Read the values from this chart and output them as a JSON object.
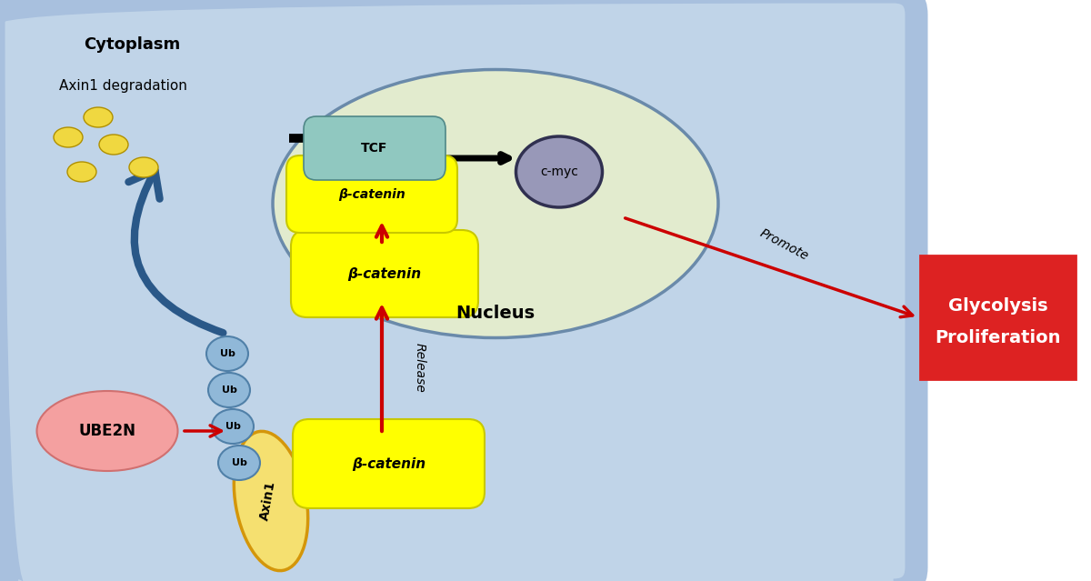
{
  "fig_width": 12.0,
  "fig_height": 6.39,
  "bg_color": "#ffffff",
  "cell_bg_outer": "#a8c0de",
  "cell_bg_inner": "#c0d4e8",
  "nucleus_bg": "#e2ebce",
  "nucleus_border": "#6a8aaa",
  "ube2n_color": "#f4a0a0",
  "ube2n_border": "#d07070",
  "ube2n_text": "UBE2N",
  "axin1_color": "#f5e070",
  "axin1_border": "#d4960a",
  "axin1_text": "Axin1",
  "ub_color": "#90b8d8",
  "ub_border": "#5080a8",
  "ub_text": "Ub",
  "beta_catenin_color": "#ffff00",
  "beta_catenin_border": "#c8c800",
  "beta_catenin_text": "β-catenin",
  "tcf_color": "#90c8c0",
  "tcf_border": "#508888",
  "tcf_text": "TCF",
  "cmyc_color": "#9898b8",
  "cmyc_border": "#303050",
  "cmyc_text": "c-myc",
  "glycolysis_bg": "#dd2222",
  "glycolysis_line1": "Glycolysis",
  "glycolysis_line2": "Proliferation",
  "release_text": "Release",
  "promote_text": "Promote",
  "axin1_deg_text": "Axin1 degradation",
  "cytoplasm_text": "Cytoplasm",
  "nucleus_text": "Nucleus",
  "arrow_color": "#cc0000",
  "curved_arrow_color": "#2a5888",
  "cell_border_color": "#7090b0"
}
